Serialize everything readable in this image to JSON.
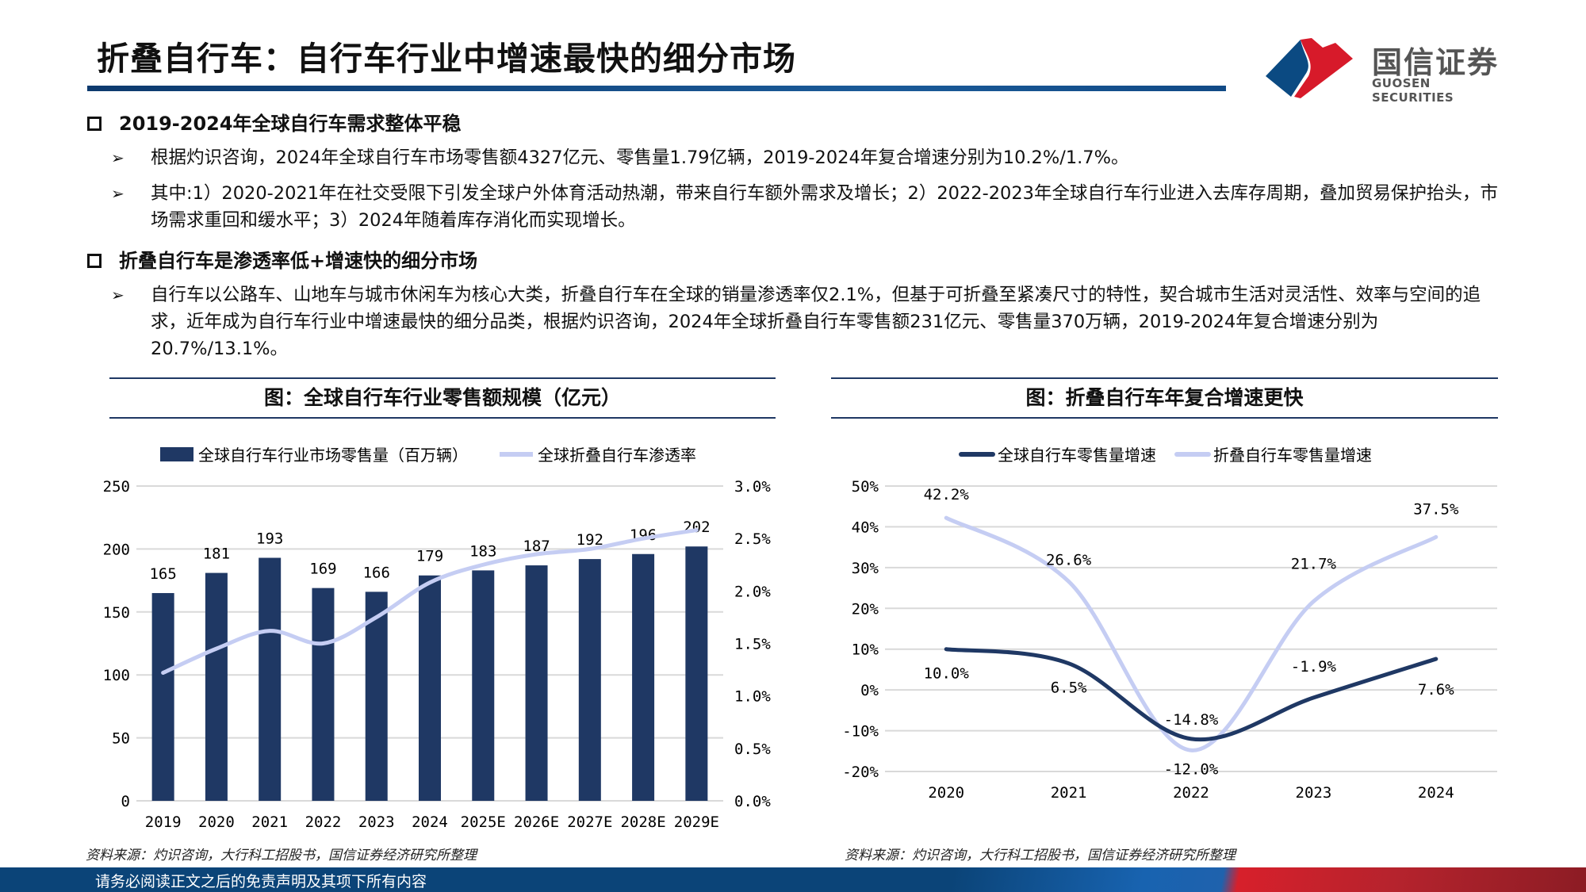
{
  "header": {
    "title": "折叠自行车：自行车行业中增速最快的细分市场",
    "logo_cn": "国信证券",
    "logo_en": "GUOSEN SECURITIES"
  },
  "sections": [
    {
      "heading": "2019-2024年全球自行车需求整体平稳",
      "bullets": [
        "根据灼识咨询，2024年全球自行车市场零售额4327亿元、零售量1.79亿辆，2019-2024年复合增速分别为10.2%/1.7%。",
        "其中:1）2020-2021年在社交受限下引发全球户外体育活动热潮，带来自行车额外需求及增长；2）2022-2023年全球自行车行业进入去库存周期，叠加贸易保护抬头，市场需求重回和缓水平；3）2024年随着库存消化而实现增长。"
      ]
    },
    {
      "heading": "折叠自行车是渗透率低+增速快的细分市场",
      "bullets": [
        "自行车以公路车、山地车与城市休闲车为核心大类，折叠自行车在全球的销量渗透率仅2.1%，但基于可折叠至紧凑尺寸的特性，契合城市生活对灵活性、效率与空间的追求，近年成为自行车行业中增速最快的细分品类，根据灼识咨询，2024年全球折叠自行车零售额231亿元、零售量370万辆，2019-2024年复合增速分别为20.7%/13.1%。"
      ]
    }
  ],
  "chart_data": [
    {
      "type": "bar+line",
      "title": "图：全球自行车行业零售额规模（亿元）",
      "categories": [
        "2019",
        "2020",
        "2021",
        "2022",
        "2023",
        "2024",
        "2025E",
        "2026E",
        "2027E",
        "2028E",
        "2029E"
      ],
      "series": [
        {
          "name": "全球自行车行业市场零售量（百万辆）",
          "type": "bar",
          "axis": "left",
          "color": "#1f3864",
          "values": [
            165,
            181,
            193,
            169,
            166,
            179,
            183,
            187,
            192,
            196,
            202
          ]
        },
        {
          "name": "全球折叠自行车渗透率",
          "type": "line",
          "axis": "right",
          "color": "#c5cdf3",
          "values": [
            1.22,
            1.45,
            1.62,
            1.5,
            1.75,
            2.08,
            2.25,
            2.35,
            2.4,
            2.5,
            2.58
          ]
        }
      ],
      "ylim_left": [
        0,
        250
      ],
      "yticks_left": [
        "0",
        "50",
        "100",
        "150",
        "200",
        "250"
      ],
      "ylim_right": [
        0,
        3.0
      ],
      "yticks_right": [
        "0.0%",
        "0.5%",
        "1.0%",
        "1.5%",
        "2.0%",
        "2.5%",
        "3.0%"
      ],
      "grid": true,
      "legend": "top",
      "source": "资料来源：灼识咨询，大行科工招股书，国信证券经济研究所整理"
    },
    {
      "type": "line",
      "title": "图：折叠自行车年复合增速更快",
      "categories": [
        "2020",
        "2021",
        "2022",
        "2023",
        "2024"
      ],
      "series": [
        {
          "name": "全球自行车零售量增速",
          "color": "#1f3864",
          "values": [
            10.0,
            6.5,
            -12.0,
            -1.9,
            7.6
          ],
          "labels": [
            "10.0%",
            "6.5%",
            "-12.0%",
            "-1.9%",
            "7.6%"
          ]
        },
        {
          "name": "折叠自行车零售量增速",
          "color": "#c5cdf3",
          "values": [
            42.2,
            26.6,
            -14.8,
            21.7,
            37.5
          ],
          "labels": [
            "42.2%",
            "26.6%",
            "-14.8%",
            "21.7%",
            "37.5%"
          ]
        }
      ],
      "ylim": [
        -20,
        50
      ],
      "yticks": [
        "-20%",
        "-10%",
        "0%",
        "10%",
        "20%",
        "30%",
        "40%",
        "50%"
      ],
      "grid": true,
      "legend": "top",
      "source": "资料来源：灼识咨询，大行科工招股书，国信证券经济研究所整理"
    }
  ],
  "footer": {
    "disclaimer": "请务必阅读正文之后的免责声明及其项下所有内容"
  }
}
